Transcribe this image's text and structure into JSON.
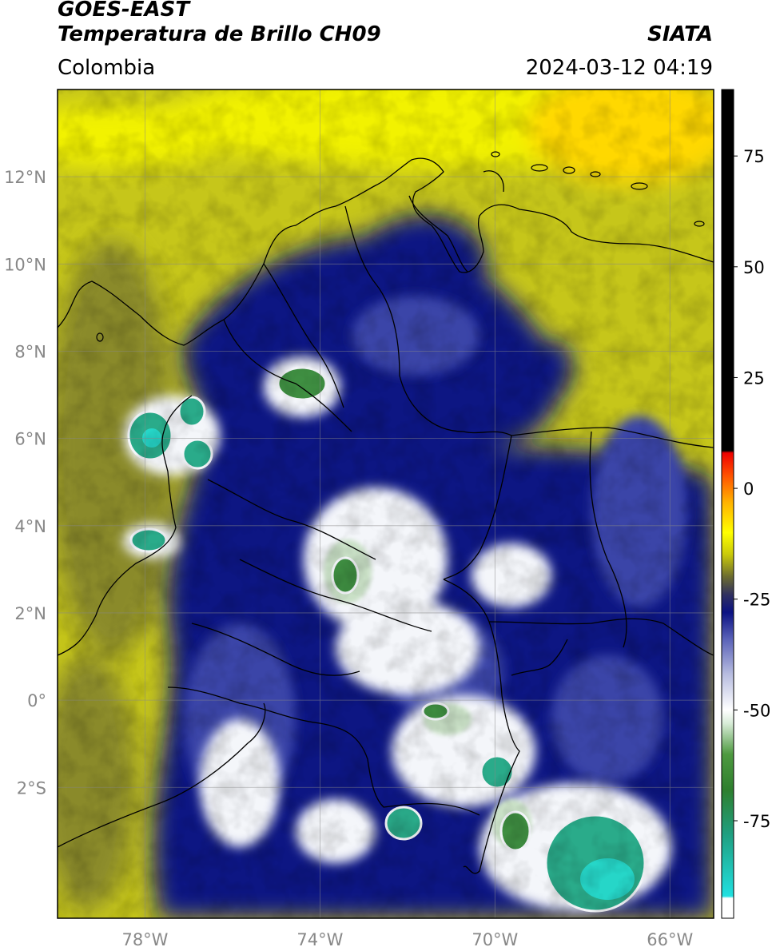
{
  "header": {
    "satellite": "GOES-EAST",
    "product": "Temperatura de Brillo CH09",
    "region": "Colombia",
    "agency": "SIATA",
    "datetime": "2024-03-12 04:19"
  },
  "map": {
    "lon_range": [
      -80,
      -65
    ],
    "lat_range": [
      -5,
      14
    ],
    "lat_ticks": [
      {
        "value": 12,
        "label": "12°N"
      },
      {
        "value": 10,
        "label": "10°N"
      },
      {
        "value": 8,
        "label": "8°N"
      },
      {
        "value": 6,
        "label": "6°N"
      },
      {
        "value": 4,
        "label": "4°N"
      },
      {
        "value": 2,
        "label": "2°N"
      },
      {
        "value": 0,
        "label": "0°"
      },
      {
        "value": -2,
        "label": "2°S"
      }
    ],
    "lon_ticks": [
      {
        "value": -78,
        "label": "78°W"
      },
      {
        "value": -74,
        "label": "74°W"
      },
      {
        "value": -70,
        "label": "70°W"
      },
      {
        "value": -66,
        "label": "66°W"
      }
    ],
    "grid": true
  },
  "colorbar": {
    "range": [
      -97,
      90
    ],
    "ticks": [
      {
        "value": 75,
        "label": "75"
      },
      {
        "value": 50,
        "label": "50"
      },
      {
        "value": 25,
        "label": "25"
      },
      {
        "value": 0,
        "label": "0"
      },
      {
        "value": -25,
        "label": "-25"
      },
      {
        "value": -50,
        "label": "-50"
      },
      {
        "value": -75,
        "label": "-75"
      }
    ],
    "stops": [
      {
        "value": -97,
        "color": "#ffffff"
      },
      {
        "value": -92.5,
        "color": "#ffffff"
      },
      {
        "value": -92,
        "color": "#20e0e0"
      },
      {
        "value": -78,
        "color": "#1f9f80"
      },
      {
        "value": -68,
        "color": "#2e7f2e"
      },
      {
        "value": -60,
        "color": "#4e9a40"
      },
      {
        "value": -53,
        "color": "#d8ecd8"
      },
      {
        "value": -50,
        "color": "#ffffff"
      },
      {
        "value": -42,
        "color": "#b8bde0"
      },
      {
        "value": -34,
        "color": "#5a62b8"
      },
      {
        "value": -28,
        "color": "#0b1283"
      },
      {
        "value": -24,
        "color": "#303060"
      },
      {
        "value": -20,
        "color": "#6b6b30"
      },
      {
        "value": -15,
        "color": "#c8c80a"
      },
      {
        "value": -10,
        "color": "#ffff00"
      },
      {
        "value": -3,
        "color": "#ffb000"
      },
      {
        "value": 3,
        "color": "#ff5000"
      },
      {
        "value": 8,
        "color": "#ee0000"
      },
      {
        "value": 8.5,
        "color": "#000000"
      },
      {
        "value": 90,
        "color": "#000000"
      }
    ]
  },
  "palette": {
    "background": "#c6c61a",
    "land_yellow": "#caca14",
    "olive": "#8a8a2a",
    "bright_yellow": "#f2f200",
    "orange_yellow": "#ffd800",
    "deep_blue": "#0b1283",
    "mid_blue": "#3a45a8",
    "light_blue": "#9ea5d8",
    "cloud_white": "#f4f6fa",
    "pale_green": "#c9e0c6",
    "green": "#3f8f42",
    "teal": "#2aab8a",
    "cyan": "#26d6c8",
    "border_line": "#000000"
  }
}
